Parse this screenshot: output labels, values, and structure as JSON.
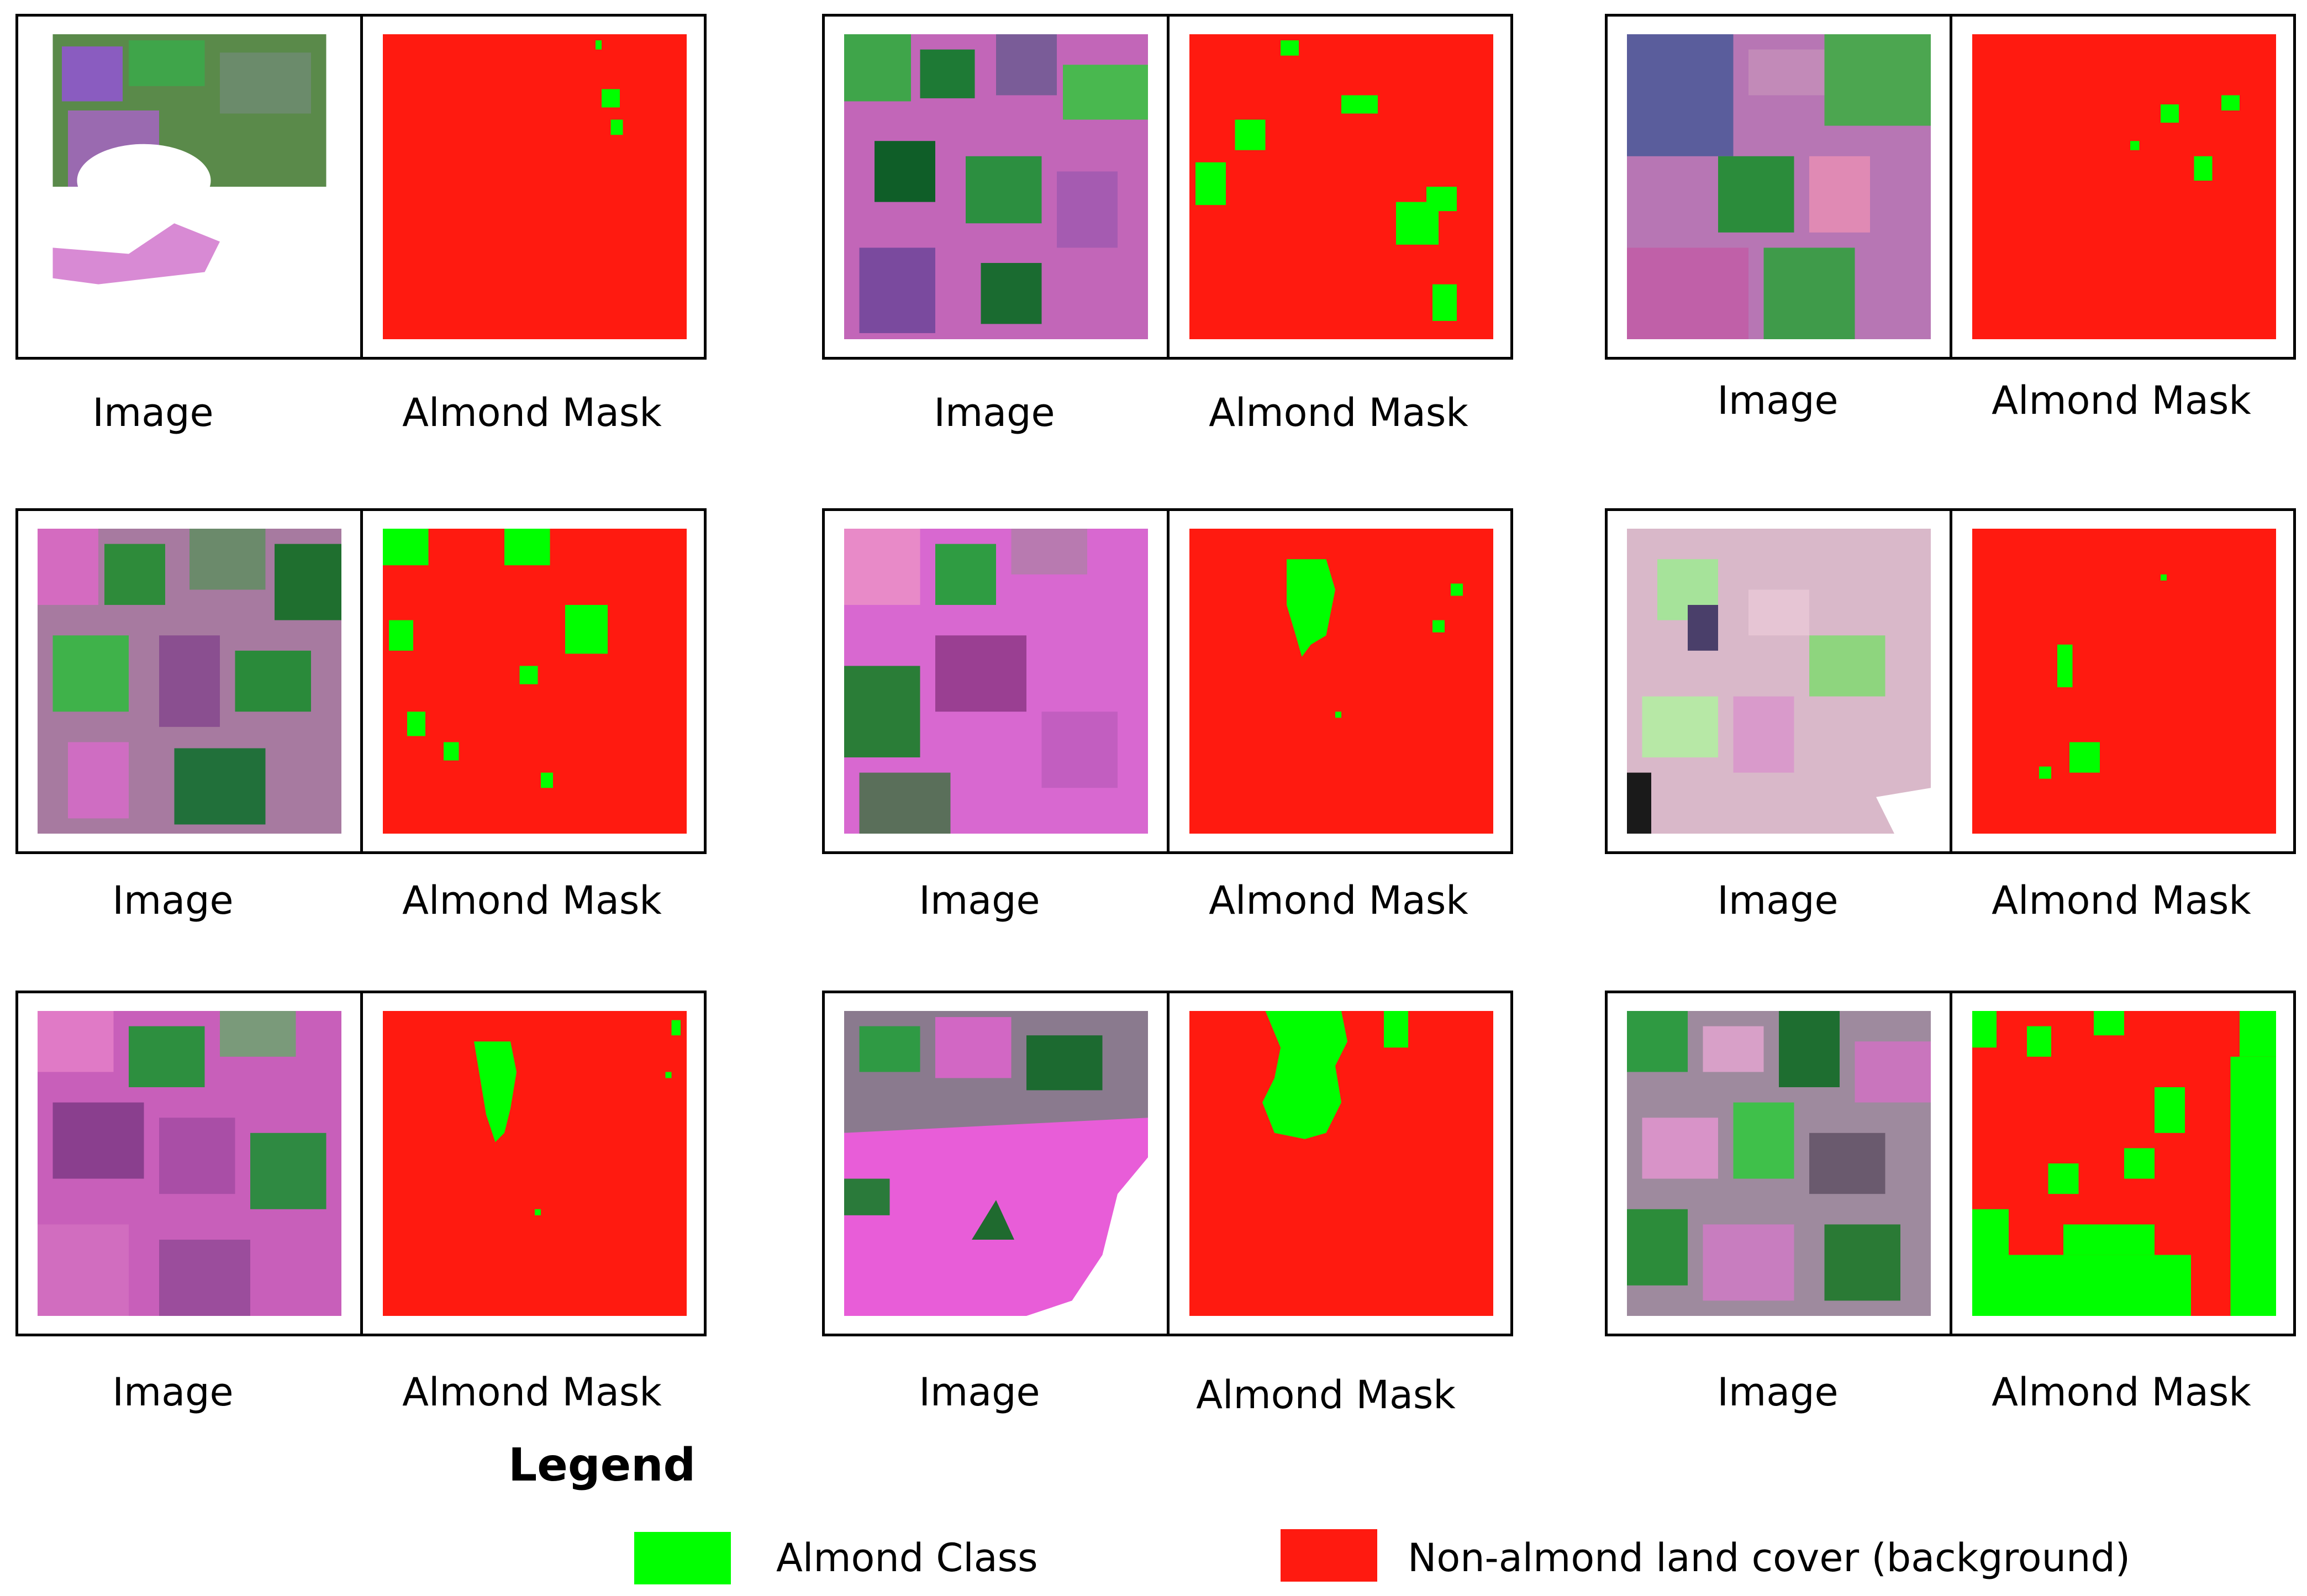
{
  "colors": {
    "almond": "#00ff00",
    "background": "#ff1a10",
    "frame": "#000000"
  },
  "captions": {
    "image": "Image",
    "mask": "Almond Mask"
  },
  "legend": {
    "title": "Legend",
    "items": [
      {
        "label": "Almond Class",
        "color": "#00ff00"
      },
      {
        "label": "Non-almond land cover (background)",
        "color": "#ff1a10"
      }
    ]
  }
}
